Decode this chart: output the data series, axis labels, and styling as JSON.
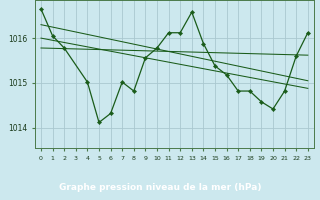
{
  "title": "Graphe pression niveau de la mer (hPa)",
  "background_color": "#cce8ee",
  "label_bg_color": "#2e6b2e",
  "label_text_color": "#ffffff",
  "grid_color": "#aac8d0",
  "line_color": "#1a5c1a",
  "x_labels": [
    "0",
    "1",
    "2",
    "3",
    "4",
    "5",
    "6",
    "7",
    "8",
    "9",
    "10",
    "11",
    "12",
    "13",
    "14",
    "15",
    "16",
    "17",
    "18",
    "19",
    "20",
    "21",
    "22",
    "23"
  ],
  "xlim": [
    -0.5,
    23.5
  ],
  "ylim": [
    1013.55,
    1016.85
  ],
  "yticks": [
    1014,
    1015,
    1016
  ],
  "series_main_x": [
    0,
    1,
    2,
    4,
    5,
    6,
    7,
    8,
    9,
    10,
    11,
    12,
    13,
    14,
    15,
    16,
    17,
    18,
    19,
    20,
    21,
    22,
    23
  ],
  "series_main_y": [
    1016.65,
    1016.05,
    1015.78,
    1015.02,
    1014.12,
    1014.32,
    1015.02,
    1014.82,
    1015.56,
    1015.78,
    1016.12,
    1016.12,
    1016.58,
    1015.88,
    1015.38,
    1015.18,
    1014.82,
    1014.82,
    1014.58,
    1014.42,
    1014.82,
    1015.6,
    1016.12
  ],
  "trend1_x": [
    0,
    23
  ],
  "trend1_y": [
    1016.3,
    1015.05
  ],
  "trend2_x": [
    0,
    23
  ],
  "trend2_y": [
    1016.0,
    1014.88
  ],
  "trend3_x": [
    0,
    23
  ],
  "trend3_y": [
    1015.78,
    1015.62
  ]
}
